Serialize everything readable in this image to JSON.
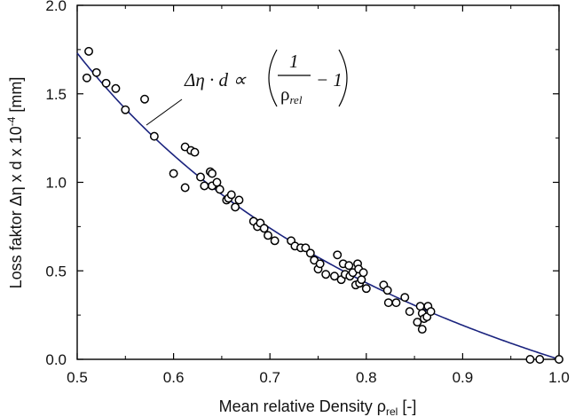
{
  "chart_data": {
    "type": "scatter",
    "xlabel": "Mean relative Density ρrel [-]",
    "xlabel_main": "Mean relative Density ",
    "xlabel_symbol": "ρ",
    "xlabel_sub": "rel",
    "xlabel_suffix": " [-]",
    "ylabel": "Loss faktor Δη x d x 10-4 [mm]",
    "ylabel_main": "Loss faktor Δη x d x 10",
    "ylabel_sup": "-4",
    "ylabel_suffix": " [mm]",
    "xlim": [
      0.5,
      1.0
    ],
    "ylim": [
      0.0,
      2.0
    ],
    "x_ticks": [
      "0.5",
      "0.6",
      "0.7",
      "0.8",
      "0.9",
      "1.0"
    ],
    "y_ticks": [
      "0.0",
      "0.5",
      "1.0",
      "1.5",
      "2.0"
    ],
    "grid": false,
    "annotation": {
      "lhs": "Δη · d ∝",
      "numerator": "1",
      "denominator": "ρ",
      "denominator_sub": "rel",
      "minus_one": "− 1"
    },
    "fit_curve": {
      "name": "fit",
      "color": "#1a237e",
      "form": "y = 1.73 * (1/x - 1)",
      "coefficient": 1.73
    },
    "marker": {
      "shape": "open-circle",
      "stroke": "#000000",
      "fill": "#ffffff"
    },
    "series": [
      {
        "points": [
          [
            0.512,
            1.74
          ],
          [
            0.51,
            1.59
          ],
          [
            0.52,
            1.62
          ],
          [
            0.53,
            1.56
          ],
          [
            0.54,
            1.53
          ],
          [
            0.55,
            1.41
          ],
          [
            0.57,
            1.47
          ],
          [
            0.58,
            1.26
          ],
          [
            0.6,
            1.05
          ],
          [
            0.612,
            1.2
          ],
          [
            0.612,
            0.97
          ],
          [
            0.618,
            1.18
          ],
          [
            0.622,
            1.17
          ],
          [
            0.628,
            1.03
          ],
          [
            0.632,
            0.98
          ],
          [
            0.638,
            1.06
          ],
          [
            0.64,
            1.05
          ],
          [
            0.64,
            0.98
          ],
          [
            0.645,
            1.0
          ],
          [
            0.648,
            0.96
          ],
          [
            0.655,
            0.9
          ],
          [
            0.657,
            0.91
          ],
          [
            0.66,
            0.93
          ],
          [
            0.664,
            0.86
          ],
          [
            0.668,
            0.9
          ],
          [
            0.683,
            0.78
          ],
          [
            0.687,
            0.75
          ],
          [
            0.69,
            0.77
          ],
          [
            0.694,
            0.74
          ],
          [
            0.698,
            0.7
          ],
          [
            0.705,
            0.67
          ],
          [
            0.722,
            0.67
          ],
          [
            0.726,
            0.64
          ],
          [
            0.732,
            0.63
          ],
          [
            0.737,
            0.63
          ],
          [
            0.742,
            0.6
          ],
          [
            0.746,
            0.56
          ],
          [
            0.75,
            0.51
          ],
          [
            0.752,
            0.54
          ],
          [
            0.758,
            0.48
          ],
          [
            0.767,
            0.47
          ],
          [
            0.77,
            0.59
          ],
          [
            0.774,
            0.45
          ],
          [
            0.776,
            0.54
          ],
          [
            0.778,
            0.48
          ],
          [
            0.782,
            0.53
          ],
          [
            0.783,
            0.47
          ],
          [
            0.786,
            0.49
          ],
          [
            0.789,
            0.42
          ],
          [
            0.791,
            0.54
          ],
          [
            0.792,
            0.51
          ],
          [
            0.793,
            0.43
          ],
          [
            0.795,
            0.45
          ],
          [
            0.797,
            0.49
          ],
          [
            0.8,
            0.4
          ],
          [
            0.818,
            0.42
          ],
          [
            0.822,
            0.39
          ],
          [
            0.823,
            0.32
          ],
          [
            0.831,
            0.32
          ],
          [
            0.84,
            0.35
          ],
          [
            0.845,
            0.27
          ],
          [
            0.853,
            0.21
          ],
          [
            0.856,
            0.3
          ],
          [
            0.858,
            0.26
          ],
          [
            0.858,
            0.17
          ],
          [
            0.86,
            0.23
          ],
          [
            0.863,
            0.24
          ],
          [
            0.864,
            0.3
          ],
          [
            0.867,
            0.27
          ],
          [
            0.97,
            0.0
          ],
          [
            0.98,
            0.0
          ],
          [
            1.0,
            0.0
          ]
        ]
      }
    ]
  }
}
